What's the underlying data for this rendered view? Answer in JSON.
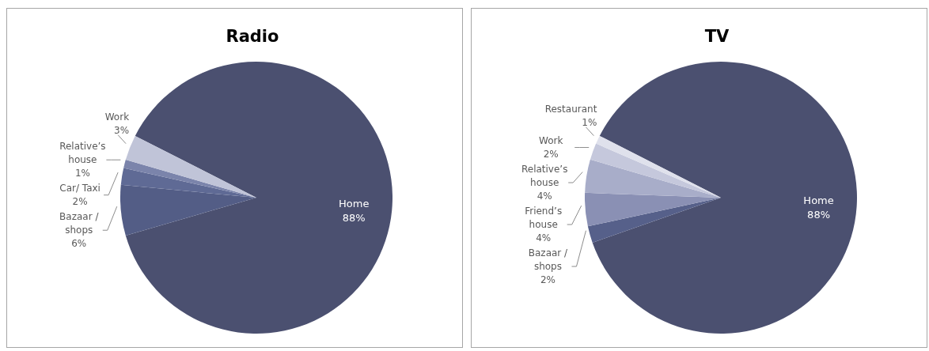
{
  "chart_data": [
    {
      "type": "pie",
      "title": "Radio",
      "categories": [
        "Home",
        "Bazaar / shops",
        "Car/ Taxi",
        "Relative’s house",
        "Work"
      ],
      "values": [
        88,
        6,
        2,
        1,
        3
      ],
      "colors": [
        "#4b5070",
        "#535d86",
        "#5f6a95",
        "#7b84ab",
        "#c0c4d8"
      ],
      "value_labels": [
        "88%",
        "6%",
        "2%",
        "1%",
        "3%"
      ],
      "data_labels": true
    },
    {
      "type": "pie",
      "title": "TV",
      "categories": [
        "Home",
        "Bazaar / shops",
        "Friend’s house",
        "Relative’s house",
        "Work",
        "Restaurant"
      ],
      "values": [
        88,
        2,
        4,
        4,
        2,
        1
      ],
      "colors": [
        "#4b5070",
        "#56608a",
        "#8a90b4",
        "#a8adc9",
        "#c5c8dc",
        "#dfe1ec"
      ],
      "value_labels": [
        "88%",
        "2%",
        "4%",
        "4%",
        "2%",
        "1%"
      ],
      "data_labels": true
    }
  ]
}
